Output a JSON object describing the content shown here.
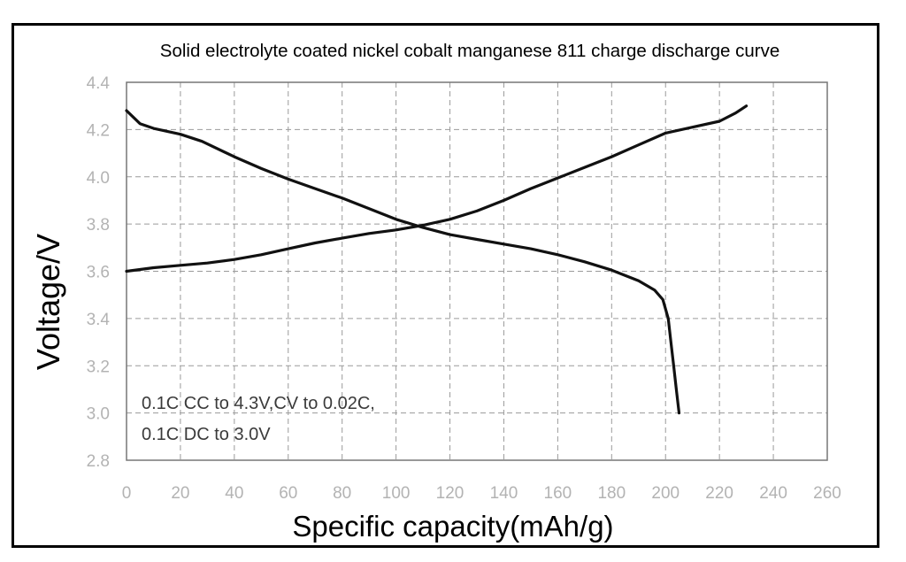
{
  "chart_data": {
    "type": "line",
    "title": "Solid electrolyte coated nickel cobalt manganese 811 charge discharge curve",
    "xlabel": "Specific capacity(mAh/g)",
    "ylabel": "Voltage/V",
    "xlim": [
      0,
      260
    ],
    "ylim": [
      2.8,
      4.4
    ],
    "grid": true,
    "x_ticks": [
      "0",
      "20",
      "40",
      "60",
      "80",
      "100",
      "120",
      "140",
      "160",
      "180",
      "200",
      "220",
      "240",
      "260"
    ],
    "y_ticks": [
      "4.4",
      "4.2",
      "4.0",
      "3.8",
      "3.6",
      "3.4",
      "3.2",
      "3.0",
      "2.8"
    ],
    "annotation": [
      "0.1C CC to 4.3V,CV to 0.02C,",
      "0.1C DC to 3.0V"
    ],
    "series": [
      {
        "color": "#111111",
        "points": [
          [
            0,
            3.6
          ],
          [
            10,
            3.615
          ],
          [
            20,
            3.625
          ],
          [
            30,
            3.635
          ],
          [
            40,
            3.65
          ],
          [
            50,
            3.67
          ],
          [
            60,
            3.695
          ],
          [
            70,
            3.72
          ],
          [
            80,
            3.74
          ],
          [
            90,
            3.76
          ],
          [
            100,
            3.775
          ],
          [
            110,
            3.795
          ],
          [
            120,
            3.82
          ],
          [
            130,
            3.855
          ],
          [
            140,
            3.9
          ],
          [
            150,
            3.95
          ],
          [
            160,
            3.995
          ],
          [
            170,
            4.04
          ],
          [
            180,
            4.085
          ],
          [
            190,
            4.135
          ],
          [
            200,
            4.185
          ],
          [
            210,
            4.21
          ],
          [
            220,
            4.235
          ],
          [
            226,
            4.27
          ],
          [
            230,
            4.3
          ]
        ]
      },
      {
        "color": "#111111",
        "points": [
          [
            0,
            4.28
          ],
          [
            5,
            4.225
          ],
          [
            10,
            4.205
          ],
          [
            20,
            4.18
          ],
          [
            28,
            4.15
          ],
          [
            40,
            4.085
          ],
          [
            50,
            4.035
          ],
          [
            60,
            3.99
          ],
          [
            70,
            3.95
          ],
          [
            80,
            3.91
          ],
          [
            90,
            3.865
          ],
          [
            100,
            3.82
          ],
          [
            110,
            3.785
          ],
          [
            120,
            3.755
          ],
          [
            130,
            3.735
          ],
          [
            140,
            3.715
          ],
          [
            150,
            3.695
          ],
          [
            160,
            3.67
          ],
          [
            170,
            3.64
          ],
          [
            180,
            3.605
          ],
          [
            190,
            3.56
          ],
          [
            196,
            3.52
          ],
          [
            199,
            3.48
          ],
          [
            201,
            3.4
          ],
          [
            202,
            3.3
          ],
          [
            203,
            3.2
          ],
          [
            204,
            3.1
          ],
          [
            205,
            3.0
          ]
        ]
      }
    ]
  }
}
